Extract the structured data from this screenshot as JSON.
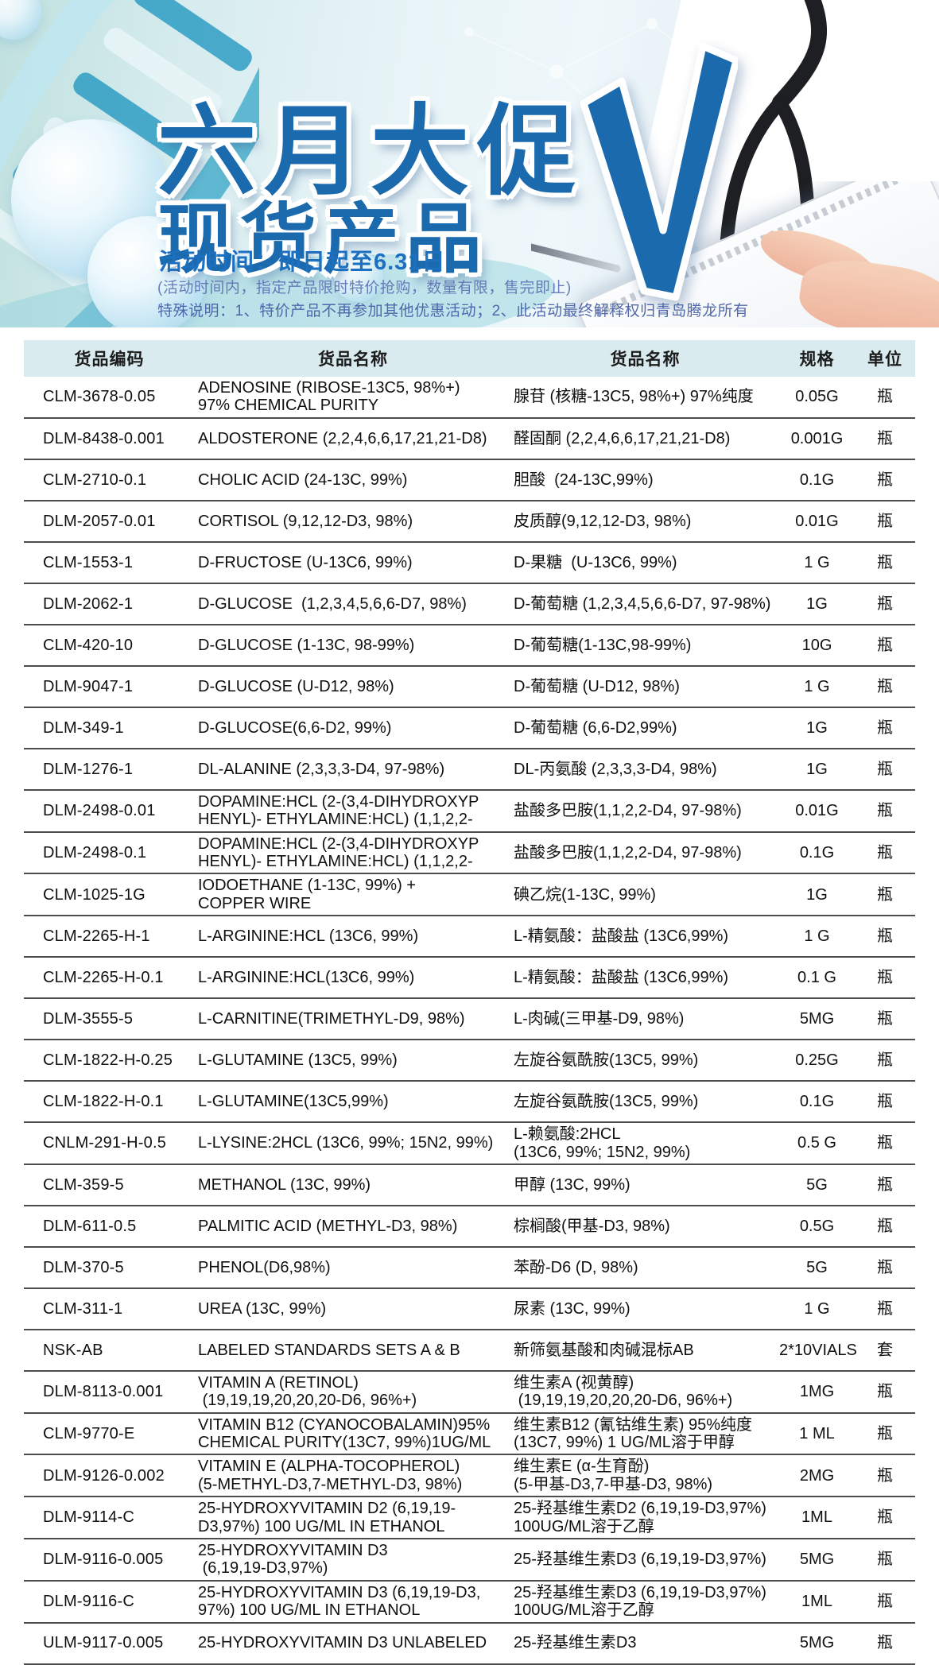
{
  "banner": {
    "title_line1": "六月大促",
    "title_line2": "现货产品",
    "activity_time": "活动时间：即日起至6.31日",
    "note1": "(活动时间内，指定产品限时特价抢购，数量有限，售完即止)",
    "note2": "特殊说明：1、特价产品不再参加其他优惠活动；2、此活动最终解释权归青岛腾龙所有",
    "checkmark_icon": "check-icon",
    "decor_icons": [
      "dna-helix-icon",
      "stethoscope-icon",
      "bubble-icon",
      "molecule-network-icon",
      "hand-tablet-icon"
    ]
  },
  "colors": {
    "title_blue": "#1a6aad",
    "time_blue": "#1d6fc0",
    "note_blue": "#586cb0",
    "header_bg": "#d9ebee",
    "row_line": "#4d4d4d",
    "banner_teal": "#bfe0dd"
  },
  "table": {
    "headers": [
      "货品编码",
      "货品名称",
      "货品名称",
      "规格",
      "单位"
    ],
    "rows": [
      {
        "code": "CLM-3678-0.05",
        "name_en": "ADENOSINE (RIBOSE-13C5, 98%+)\n97% CHEMICAL PURITY",
        "name_cn": "腺苷 (核糖-13C5, 98%+) 97%纯度",
        "spec": "0.05G",
        "unit": "瓶"
      },
      {
        "code": "DLM-8438-0.001",
        "name_en": "ALDOSTERONE (2,2,4,6,6,17,21,21-D8)",
        "name_cn": "醛固酮 (2,2,4,6,6,17,21,21-D8)",
        "spec": "0.001G",
        "unit": "瓶"
      },
      {
        "code": "CLM-2710-0.1",
        "name_en": "CHOLIC ACID (24-13C, 99%)",
        "name_cn": "胆酸  (24-13C,99%)",
        "spec": "0.1G",
        "unit": "瓶"
      },
      {
        "code": "DLM-2057-0.01",
        "name_en": "CORTISOL (9,12,12-D3, 98%)",
        "name_cn": "皮质醇(9,12,12-D3, 98%)",
        "spec": "0.01G",
        "unit": "瓶"
      },
      {
        "code": "CLM-1553-1",
        "name_en": "D-FRUCTOSE (U-13C6, 99%)",
        "name_cn": "D-果糖  (U-13C6, 99%)",
        "spec": "1 G",
        "unit": "瓶"
      },
      {
        "code": "DLM-2062-1",
        "name_en": "D-GLUCOSE  (1,2,3,4,5,6,6-D7, 98%)",
        "name_cn": "D-葡萄糖 (1,2,3,4,5,6,6-D7, 97-98%)",
        "spec": "1G",
        "unit": "瓶"
      },
      {
        "code": "CLM-420-10",
        "name_en": "D-GLUCOSE (1-13C, 98-99%)",
        "name_cn": "D-葡萄糖(1-13C,98-99%)",
        "spec": "10G",
        "unit": "瓶"
      },
      {
        "code": "DLM-9047-1",
        "name_en": "D-GLUCOSE (U-D12, 98%)",
        "name_cn": "D-葡萄糖 (U-D12, 98%)",
        "spec": "1 G",
        "unit": "瓶"
      },
      {
        "code": "DLM-349-1",
        "name_en": "D-GLUCOSE(6,6-D2, 99%)",
        "name_cn": "D-葡萄糖 (6,6-D2,99%)",
        "spec": "1G",
        "unit": "瓶"
      },
      {
        "code": "DLM-1276-1",
        "name_en": "DL-ALANINE (2,3,3,3-D4, 97-98%)",
        "name_cn": "DL-丙氨酸 (2,3,3,3-D4, 98%)",
        "spec": "1G",
        "unit": "瓶"
      },
      {
        "code": "DLM-2498-0.01",
        "name_en": "DOPAMINE:HCL (2-(3,4-DIHYDROXYP\nHENYL)- ETHYLAMINE:HCL) (1,1,2,2-",
        "name_cn": "盐酸多巴胺(1,1,2,2-D4, 97-98%)",
        "spec": "0.01G",
        "unit": "瓶"
      },
      {
        "code": "DLM-2498-0.1",
        "name_en": "DOPAMINE:HCL (2-(3,4-DIHYDROXYP\nHENYL)- ETHYLAMINE:HCL) (1,1,2,2-",
        "name_cn": "盐酸多巴胺(1,1,2,2-D4, 97-98%)",
        "spec": "0.1G",
        "unit": "瓶"
      },
      {
        "code": "CLM-1025-1G",
        "name_en": "IODOETHANE (1-13C, 99%) +\nCOPPER WIRE",
        "name_cn": "碘乙烷(1-13C, 99%)",
        "spec": "1G",
        "unit": "瓶"
      },
      {
        "code": "CLM-2265-H-1",
        "name_en": "L-ARGININE:HCL (13C6, 99%)",
        "name_cn": "L-精氨酸：盐酸盐 (13C6,99%)",
        "spec": "1 G",
        "unit": "瓶"
      },
      {
        "code": "CLM-2265-H-0.1",
        "name_en": "L-ARGININE:HCL(13C6, 99%)",
        "name_cn": "L-精氨酸：盐酸盐 (13C6,99%)",
        "spec": "0.1 G",
        "unit": "瓶"
      },
      {
        "code": "DLM-3555-5",
        "name_en": "L-CARNITINE(TRIMETHYL-D9, 98%)",
        "name_cn": "L-肉碱(三甲基-D9, 98%)",
        "spec": "5MG",
        "unit": "瓶"
      },
      {
        "code": "CLM-1822-H-0.25",
        "name_en": "L-GLUTAMINE (13C5, 99%)",
        "name_cn": "左旋谷氨酰胺(13C5, 99%)",
        "spec": "0.25G",
        "unit": "瓶"
      },
      {
        "code": "CLM-1822-H-0.1",
        "name_en": "L-GLUTAMINE(13C5,99%)",
        "name_cn": "左旋谷氨酰胺(13C5, 99%)",
        "spec": "0.1G",
        "unit": "瓶"
      },
      {
        "code": "CNLM-291-H-0.5",
        "name_en": "L-LYSINE:2HCL (13C6, 99%; 15N2, 99%)",
        "name_cn": "L-赖氨酸:2HCL\n(13C6, 99%; 15N2, 99%)",
        "spec": "0.5 G",
        "unit": "瓶"
      },
      {
        "code": "CLM-359-5",
        "name_en": "METHANOL (13C, 99%)",
        "name_cn": "甲醇 (13C, 99%)",
        "spec": "5G",
        "unit": "瓶"
      },
      {
        "code": "DLM-611-0.5",
        "name_en": "PALMITIC ACID (METHYL-D3, 98%)",
        "name_cn": "棕榈酸(甲基-D3, 98%)",
        "spec": "0.5G",
        "unit": "瓶"
      },
      {
        "code": "DLM-370-5",
        "name_en": "PHENOL(D6,98%)",
        "name_cn": "苯酚-D6 (D, 98%)",
        "spec": "5G",
        "unit": "瓶"
      },
      {
        "code": "CLM-311-1",
        "name_en": "UREA (13C, 99%)",
        "name_cn": "尿素 (13C, 99%)",
        "spec": "1 G",
        "unit": "瓶"
      },
      {
        "code": "NSK-AB",
        "name_en": "LABELED STANDARDS SETS A & B",
        "name_cn": "新筛氨基酸和肉碱混标AB",
        "spec": "2*10VIALS",
        "unit": "套"
      },
      {
        "code": "DLM-8113-0.001",
        "name_en": "VITAMIN A (RETINOL)\n (19,19,19,20,20,20-D6, 96%+)",
        "name_cn": "维生素A (视黄醇)\n (19,19,19,20,20,20-D6, 96%+)",
        "spec": "1MG",
        "unit": "瓶"
      },
      {
        "code": "CLM-9770-E",
        "name_en": "VITAMIN B12 (CYANOCOBALAMIN)95%\nCHEMICAL PURITY(13C7, 99%)1UG/ML",
        "name_cn": "维生素B12 (氰钴维生素) 95%纯度\n(13C7, 99%) 1 UG/ML溶于甲醇",
        "spec": "1 ML",
        "unit": "瓶"
      },
      {
        "code": "DLM-9126-0.002",
        "name_en": "VITAMIN E (ALPHA-TOCOPHEROL)\n(5-METHYL-D3,7-METHYL-D3, 98%)",
        "name_cn": "维生素E (α-生育酚)\n(5-甲基-D3,7-甲基-D3, 98%)",
        "spec": "2MG",
        "unit": "瓶"
      },
      {
        "code": "DLM-9114-C",
        "name_en": "25-HYDROXYVITAMIN D2 (6,19,19-\nD3,97%) 100 UG/ML IN ETHANOL",
        "name_cn": "25-羟基维生素D2 (6,19,19-D3,97%)\n100UG/ML溶于乙醇",
        "spec": "1ML",
        "unit": "瓶"
      },
      {
        "code": "DLM-9116-0.005",
        "name_en": "25-HYDROXYVITAMIN D3\n (6,19,19-D3,97%)",
        "name_cn": "25-羟基维生素D3 (6,19,19-D3,97%)",
        "spec": "5MG",
        "unit": "瓶"
      },
      {
        "code": "DLM-9116-C",
        "name_en": "25-HYDROXYVITAMIN D3 (6,19,19-D3,\n97%) 100 UG/ML IN ETHANOL",
        "name_cn": "25-羟基维生素D3 (6,19,19-D3,97%)\n100UG/ML溶于乙醇",
        "spec": "1ML",
        "unit": "瓶"
      },
      {
        "code": "ULM-9117-0.005",
        "name_en": "25-HYDROXYVITAMIN D3 UNLABELED",
        "name_cn": "25-羟基维生素D3",
        "spec": "5MG",
        "unit": "瓶"
      }
    ]
  }
}
